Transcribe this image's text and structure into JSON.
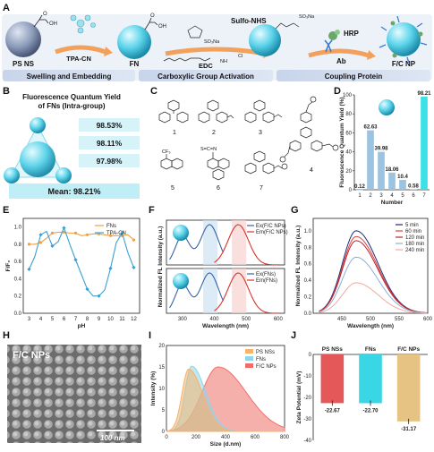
{
  "panel_labels": [
    "A",
    "B",
    "C",
    "D",
    "E",
    "F",
    "G",
    "H",
    "I",
    "J"
  ],
  "panel_a": {
    "items": {
      "ps_ns": "PS NS",
      "tpa_cn": "TPA-CN",
      "fn": "FN",
      "sulfo_nhs": "Sulfo-NHS",
      "edc": "EDC",
      "hrp": "HRP",
      "ab": "Ab",
      "fc_np": "F/C NP",
      "cl": "Cl",
      "so3na_1": "SO₃Na",
      "so3na_2": "SO₃Na",
      "nh": "NH"
    },
    "stages": [
      "Swelling and Embedding",
      "Carboxylic Group Activation",
      "Coupling Protein"
    ]
  },
  "panel_b": {
    "title_line1": "Fluorescence Quantum Yield",
    "title_line2": "of FNs (Intra-group)",
    "values": [
      "98.53%",
      "98.11%",
      "97.98%"
    ],
    "mean": "Mean: 98.21%"
  },
  "panel_c": {
    "labels": [
      "1",
      "2",
      "3",
      "4",
      "5",
      "6",
      "7"
    ],
    "cf3": "CF₃",
    "o": "O",
    "n": "N",
    "s": "S",
    "scn": "S=C=N"
  },
  "chart_data": [
    {
      "id": "D",
      "type": "bar",
      "categories": [
        "1",
        "2",
        "3",
        "4",
        "5",
        "6",
        "7"
      ],
      "values": [
        0.12,
        62.63,
        39.98,
        18.06,
        10.4,
        0.58,
        98.21
      ],
      "value_labels": [
        "0.12",
        "62.63",
        "39.98",
        "18.06",
        "10.4",
        "0.58",
        "98.21"
      ],
      "ylabel": "Fluorescence Quantum Yield (%)",
      "xlabel": "Number",
      "ylim": [
        0,
        100
      ],
      "yticks": [
        "0",
        "20",
        "40",
        "60",
        "80",
        "100"
      ],
      "colors": {
        "bar": "#9cc3e0",
        "highlight": "#3ee0e6"
      }
    },
    {
      "id": "E",
      "type": "line",
      "x": [
        3,
        3.5,
        4,
        4.5,
        5,
        5.5,
        6,
        6.5,
        7,
        7.5,
        8,
        8.5,
        9,
        9.5,
        10,
        10.5,
        11,
        11.5,
        12
      ],
      "series": [
        {
          "name": "FNs",
          "color": "#f0a040",
          "values": [
            0.8,
            0.8,
            0.82,
            0.87,
            0.93,
            0.94,
            0.94,
            0.93,
            0.93,
            0.9,
            0.91,
            0.92,
            0.92,
            0.91,
            0.9,
            0.9,
            0.9,
            0.91,
            0.85
          ]
        },
        {
          "name": "TPA-CN",
          "color": "#3d9fd1",
          "values": [
            0.51,
            0.66,
            0.91,
            0.95,
            0.78,
            0.83,
            0.99,
            0.8,
            0.62,
            0.45,
            0.28,
            0.2,
            0.2,
            0.27,
            0.52,
            0.82,
            0.93,
            0.7,
            0.53
          ]
        }
      ],
      "xlabel": "pH",
      "ylabel": "F/F₀",
      "xlim": [
        2.5,
        12.5
      ],
      "ylim": [
        0,
        1.1
      ],
      "xticks": [
        "2",
        "3",
        "4",
        "5",
        "6",
        "7",
        "8",
        "9",
        "10",
        "11",
        "12",
        "13"
      ],
      "yticks": [
        "0.0",
        "0.2",
        "0.4",
        "0.6",
        "0.8",
        "1.0"
      ]
    },
    {
      "id": "F",
      "type": "line",
      "ylabel": "Normalized FL Intensity (a.u.)",
      "xlabel": "Wavelength (nm)",
      "xlim": [
        250,
        620
      ],
      "xticks": [
        "300",
        "400",
        "500",
        "600"
      ],
      "top": {
        "series": [
          {
            "name": "Ex(F/C NPs)",
            "color": "#3563a8"
          },
          {
            "name": "Em(F/C NPs)",
            "color": "#d8342a"
          }
        ]
      },
      "bottom": {
        "series": [
          {
            "name": "Ex(FNs)",
            "color": "#3563a8"
          },
          {
            "name": "Em(FNs)",
            "color": "#d8342a"
          }
        ]
      }
    },
    {
      "id": "G",
      "type": "line",
      "series": [
        {
          "name": "5 min",
          "color": "#1c2a7a",
          "peak": 1.0
        },
        {
          "name": "60 min",
          "color": "#e0433a",
          "peak": 0.93
        },
        {
          "name": "120 min",
          "color": "#c0202a",
          "peak": 0.88
        },
        {
          "name": "180 min",
          "color": "#8ab0d8",
          "peak": 0.68
        },
        {
          "name": "240 min",
          "color": "#f2a8a0",
          "peak": 0.37
        }
      ],
      "xlabel": "Wavelength (nm)",
      "ylabel": "Normalized FL Intensity (a.u.)",
      "xlim": [
        400,
        600
      ],
      "ylim": [
        0,
        1.15
      ],
      "xticks": [
        "450",
        "500",
        "550",
        "600"
      ],
      "yticks": [
        "0.0",
        "0.2",
        "0.4",
        "0.6",
        "0.8",
        "1.0"
      ]
    },
    {
      "id": "I",
      "type": "area",
      "series": [
        {
          "name": "PS NSs",
          "color": "#f5b36b",
          "peak_x": 150,
          "peak_y": 14.5
        },
        {
          "name": "FNs",
          "color": "#8fd6e6",
          "peak_x": 170,
          "peak_y": 15.2
        },
        {
          "name": "F/C NPs",
          "color": "#ef6f68",
          "peak_x": 350,
          "peak_y": 15.0
        }
      ],
      "xlabel": "Size (d.nm)",
      "ylabel": "Intensity (%)",
      "xlim": [
        0,
        800
      ],
      "ylim": [
        0,
        20
      ],
      "xticks": [
        "0",
        "200",
        "400",
        "600",
        "800"
      ],
      "yticks": [
        "0",
        "5",
        "10",
        "15",
        "20"
      ]
    },
    {
      "id": "J",
      "type": "bar",
      "categories": [
        "PS NSs",
        "FNs",
        "F/C NPs"
      ],
      "values": [
        -22.67,
        -22.7,
        -31.17
      ],
      "value_labels": [
        "-22.67",
        "-22.70",
        "-31.17"
      ],
      "colors": [
        "#e4585a",
        "#39d6e6",
        "#e6c383"
      ],
      "ylabel": "Zeta Potential (mV)",
      "ylim": [
        -40,
        0
      ],
      "yticks": [
        "0",
        "-10",
        "-20",
        "-30",
        "-40"
      ]
    }
  ],
  "panel_h": {
    "label": "F/C NPs",
    "scale": "100 nm"
  }
}
